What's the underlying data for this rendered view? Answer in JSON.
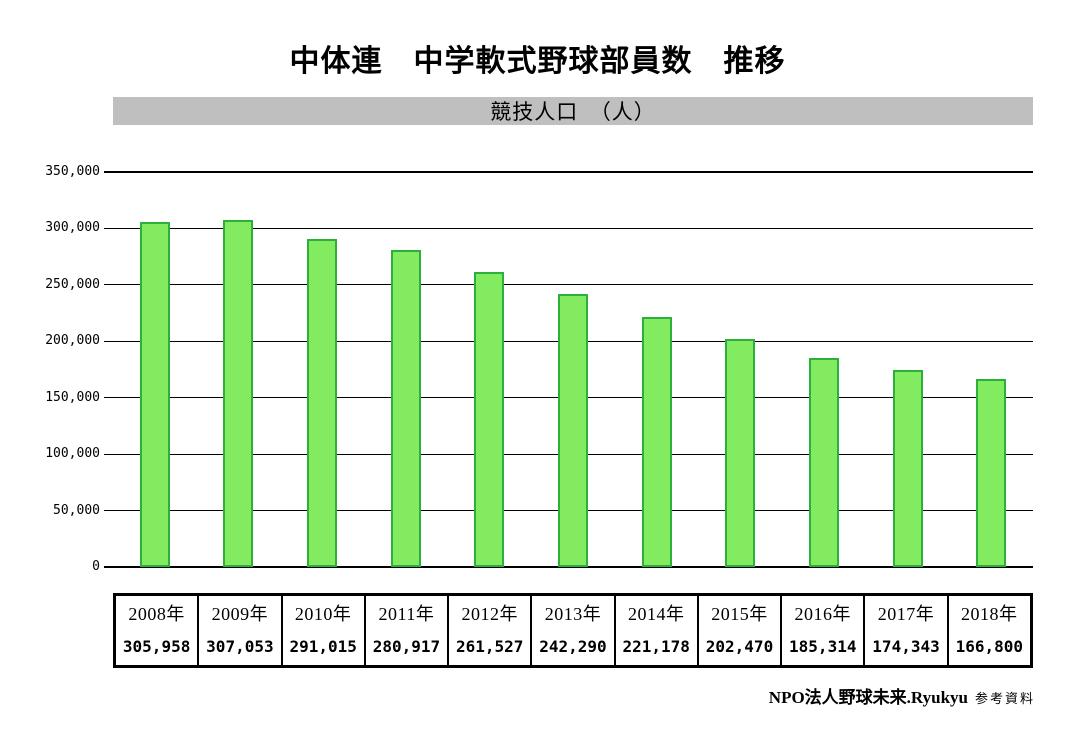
{
  "chart_data": {
    "type": "bar",
    "title": "中体連　中学軟式野球部員数　推移",
    "subtitle": "競技人口　（人）",
    "categories": [
      "2008年",
      "2009年",
      "2010年",
      "2011年",
      "2012年",
      "2013年",
      "2014年",
      "2015年",
      "2016年",
      "2017年",
      "2018年"
    ],
    "values": [
      305958,
      307053,
      291015,
      280917,
      261527,
      242290,
      221178,
      202470,
      185314,
      174343,
      166800
    ],
    "value_labels": [
      "305,958",
      "307,053",
      "291,015",
      "280,917",
      "261,527",
      "242,290",
      "221,178",
      "202,470",
      "185,314",
      "174,343",
      "166,800"
    ],
    "ylim": [
      0,
      350000
    ],
    "ytick_step": 50000,
    "ytick_labels": [
      "0",
      "50,000",
      "100,000",
      "150,000",
      "200,000",
      "250,000",
      "300,000",
      "350,000"
    ],
    "grid": true,
    "legend": "none",
    "bar_fill": "#82EB5F",
    "bar_border": "#2DAF3C",
    "band_background": "#BFBFBF"
  },
  "footer": {
    "org": "NPO法人野球未来.Ryukyu",
    "note": "参考資料"
  }
}
